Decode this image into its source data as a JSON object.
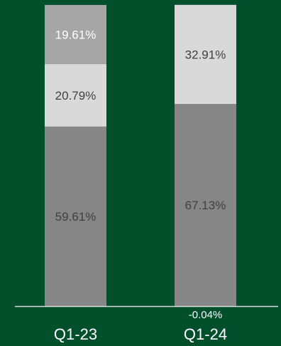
{
  "chart_data": {
    "type": "bar",
    "stacked": true,
    "categories": [
      "Q1-23",
      "Q1-24"
    ],
    "series": [
      {
        "values": [
          59.61,
          67.13
        ],
        "labels": [
          "59.61%",
          "67.13%"
        ],
        "color": "#868686",
        "label_color": "#404040"
      },
      {
        "values": [
          20.79,
          32.91
        ],
        "labels": [
          "20.79%",
          "32.91%"
        ],
        "color": "#d9d9d9",
        "label_color": "#404040"
      },
      {
        "values": [
          19.61,
          0
        ],
        "labels": [
          "19.61%",
          ""
        ],
        "color": "#a6a6a6",
        "label_color": "#ffffff"
      },
      {
        "values": [
          0,
          -0.04
        ],
        "labels": [
          "",
          "-0.04%"
        ],
        "color": "#a6a6a6",
        "label_color": "#ffffff"
      }
    ],
    "ylim": [
      0,
      100
    ],
    "grid": false,
    "legend": "none",
    "title": "",
    "xlabel": "",
    "ylabel": ""
  },
  "colors": {
    "background": "#024f2b",
    "axis_line": "#d9d9d9",
    "category_text": "#ffffff"
  }
}
